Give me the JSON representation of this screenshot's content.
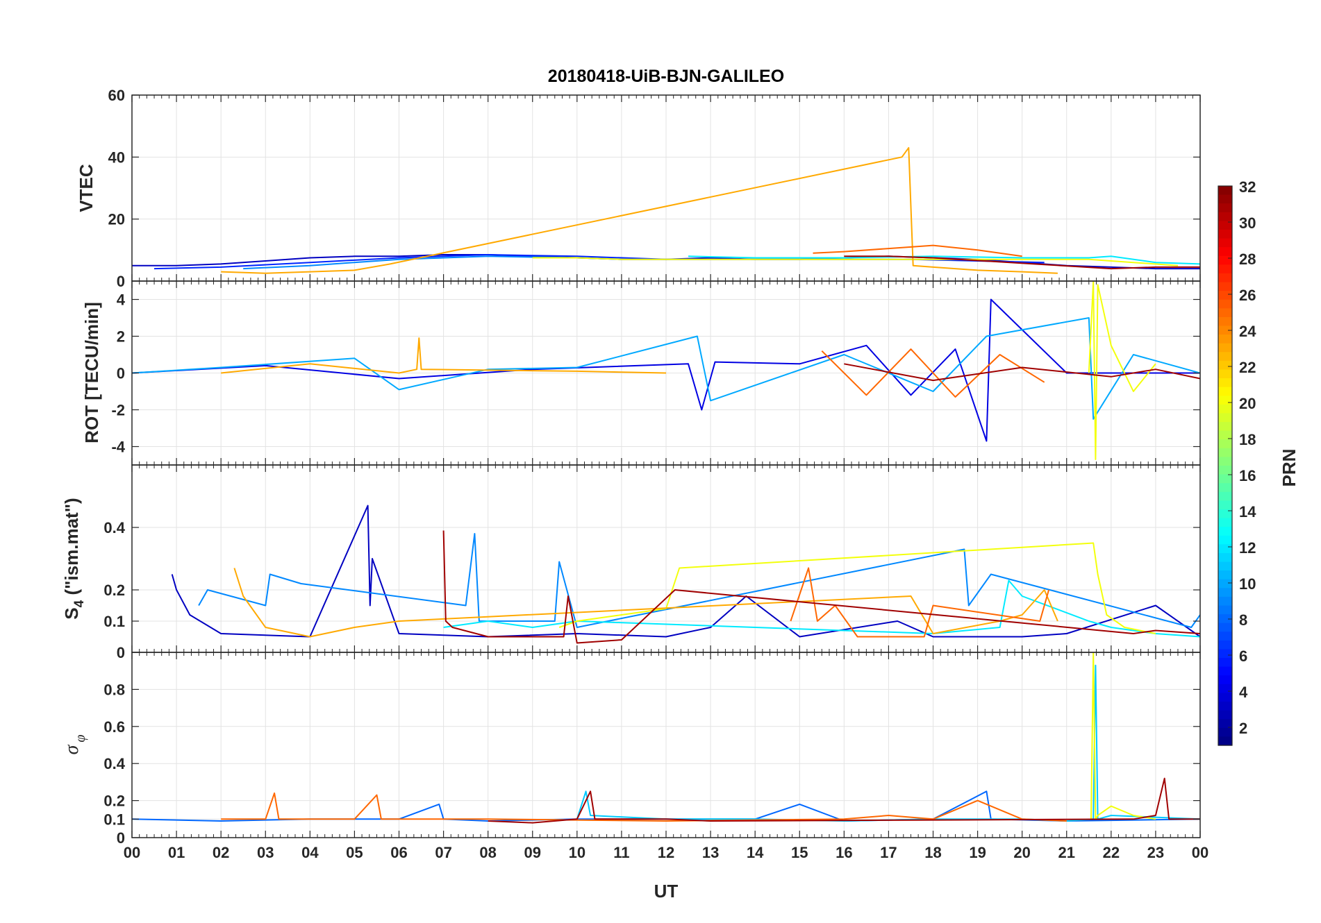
{
  "chart_data": {
    "type": "line",
    "title": "20180418-UiB-BJN-GALILEO",
    "xlabel": "UT",
    "x_ticks": [
      "00",
      "01",
      "02",
      "03",
      "04",
      "05",
      "06",
      "07",
      "08",
      "09",
      "10",
      "11",
      "12",
      "13",
      "14",
      "15",
      "16",
      "17",
      "18",
      "19",
      "20",
      "21",
      "22",
      "23",
      "00"
    ],
    "xlim": [
      0,
      24
    ],
    "grid": true,
    "panels": [
      {
        "ylabel": "VTEC",
        "ylim": [
          0,
          60
        ],
        "yticks": [
          0,
          20,
          40,
          60
        ],
        "series": [
          {
            "prn": 3,
            "x": [
              0,
              1,
              2,
              3,
              4,
              5,
              6,
              7,
              8,
              9,
              10,
              11,
              12,
              13,
              14,
              15,
              16,
              17,
              18,
              19,
              20,
              21,
              22,
              23,
              24
            ],
            "y": [
              5,
              5,
              5.5,
              6.5,
              7.5,
              8,
              8,
              8.5,
              8.5,
              8,
              7.5,
              7,
              7,
              7.5,
              7,
              7,
              7.5,
              8,
              7.5,
              7,
              6,
              5,
              4.5,
              4,
              4
            ]
          },
          {
            "prn": 6,
            "x": [
              0.5,
              2,
              4,
              6,
              8,
              10,
              12,
              14,
              16,
              17.5,
              19,
              20.5
            ],
            "y": [
              4,
              4.5,
              6,
              7.5,
              8.5,
              8,
              7,
              7,
              7,
              7,
              6.5,
              6
            ]
          },
          {
            "prn": 9,
            "x": [
              2.5,
              4,
              6,
              8,
              10,
              11
            ],
            "y": [
              4,
              5,
              7,
              8,
              7.5,
              7
            ]
          },
          {
            "prn": 12,
            "x": [
              12.5,
              14,
              16,
              18,
              20,
              21.5,
              22,
              23,
              24
            ],
            "y": [
              8,
              7.5,
              7.5,
              8,
              7.5,
              7.5,
              8,
              6,
              5.5
            ]
          },
          {
            "prn": 20,
            "x": [
              9,
              10,
              11,
              12,
              21.5,
              22.5,
              23.5
            ],
            "y": [
              7.5,
              7.5,
              7,
              7,
              7,
              6,
              5
            ]
          },
          {
            "prn": 23,
            "x": [
              2,
              3,
              4,
              5,
              5.8,
              17.3,
              17.45,
              17.55,
              18,
              19,
              20,
              20.8
            ],
            "y": [
              3,
              2.5,
              3,
              3.5,
              5.5,
              40,
              43,
              5,
              4.5,
              3.5,
              3,
              2.5
            ]
          },
          {
            "prn": 25,
            "x": [
              15.3,
              16,
              17,
              18,
              19,
              20
            ],
            "y": [
              9,
              9.5,
              10.5,
              11.5,
              10,
              8
            ]
          },
          {
            "prn": 31,
            "x": [
              16,
              17,
              18,
              22,
              23,
              24
            ],
            "y": [
              8,
              8,
              7.5,
              4,
              4.5,
              4.5
            ]
          }
        ]
      },
      {
        "ylabel": "ROT [TECU/min]",
        "ylim": [
          -5,
          5
        ],
        "yticks": [
          -4,
          -2,
          0,
          2,
          4
        ],
        "series": [
          {
            "prn": 4,
            "x": [
              0,
              3,
              6,
              9,
              12.5,
              12.8,
              13.1,
              15,
              16.5,
              17.5,
              18.5,
              19.2,
              19.3,
              21,
              24
            ],
            "y": [
              0,
              0.4,
              -0.3,
              0.2,
              0.5,
              -2,
              0.6,
              0.5,
              1.5,
              -1.2,
              1.3,
              -3.7,
              4,
              0,
              0
            ]
          },
          {
            "prn": 10,
            "x": [
              0,
              2,
              5,
              6,
              8,
              10,
              12.7,
              13,
              16,
              18,
              19.2,
              21.5,
              21.6,
              22.5,
              24
            ],
            "y": [
              0,
              0.3,
              0.8,
              -0.9,
              0.2,
              0.3,
              2,
              -1.5,
              1,
              -1,
              2,
              3,
              -2.5,
              1,
              0
            ]
          },
          {
            "prn": 20,
            "x": [
              21.5,
              21.6,
              21.65,
              21.7,
              22,
              22.5,
              23
            ],
            "y": [
              0,
              5,
              -4.7,
              4.8,
              1.5,
              -1,
              0.5
            ]
          },
          {
            "prn": 23,
            "x": [
              2,
              4,
              6,
              6.4,
              6.45,
              6.5,
              10,
              12
            ],
            "y": [
              0,
              0.5,
              0,
              0.2,
              1.9,
              0.2,
              0.1,
              0
            ]
          },
          {
            "prn": 25,
            "x": [
              15.5,
              16.5,
              17.5,
              18.5,
              19.5,
              20.5
            ],
            "y": [
              1.2,
              -1.2,
              1.3,
              -1.3,
              1,
              -0.5
            ]
          },
          {
            "prn": 31,
            "x": [
              16,
              18,
              20,
              22,
              23,
              24
            ],
            "y": [
              0.5,
              -0.4,
              0.3,
              -0.2,
              0.2,
              -0.3
            ]
          }
        ]
      },
      {
        "ylabel": "S4 (\"ism.mat\")",
        "ylim": [
          0,
          0.6
        ],
        "yticks": [
          0,
          0.1,
          0.2,
          0.4
        ],
        "series": [
          {
            "prn": 3,
            "x": [
              0.9,
              1,
              1.3,
              2,
              4,
              5.3,
              5.35,
              5.4,
              6,
              8,
              10,
              12,
              13,
              13.8,
              15,
              17.2,
              18,
              20,
              21,
              23,
              24
            ],
            "y": [
              0.25,
              0.2,
              0.12,
              0.06,
              0.05,
              0.47,
              0.15,
              0.3,
              0.06,
              0.05,
              0.06,
              0.05,
              0.08,
              0.18,
              0.05,
              0.1,
              0.05,
              0.05,
              0.06,
              0.15,
              0.05
            ]
          },
          {
            "prn": 9,
            "x": [
              1.5,
              1.7,
              3,
              3.1,
              3.8,
              7.5,
              7.7,
              7.8,
              9.5,
              9.6,
              10,
              18.7,
              18.8,
              19.3,
              23.8,
              24
            ],
            "y": [
              0.15,
              0.2,
              0.15,
              0.25,
              0.22,
              0.15,
              0.38,
              0.1,
              0.1,
              0.29,
              0.08,
              0.33,
              0.15,
              0.25,
              0.08,
              0.12
            ]
          },
          {
            "prn": 12,
            "x": [
              7,
              8,
              9,
              10,
              18,
              19.5,
              19.7,
              20,
              21.5,
              22,
              23,
              24
            ],
            "y": [
              0.08,
              0.1,
              0.08,
              0.1,
              0.06,
              0.08,
              0.23,
              0.18,
              0.1,
              0.08,
              0.06,
              0.05
            ]
          },
          {
            "prn": 20,
            "x": [
              9.6,
              10,
              11,
              12,
              12.3,
              21.6,
              21.7,
              21.9,
              22.3,
              23
            ],
            "y": [
              0.08,
              0.1,
              0.12,
              0.14,
              0.27,
              0.35,
              0.25,
              0.12,
              0.08,
              0.06
            ]
          },
          {
            "prn": 23,
            "x": [
              2.3,
              2.5,
              3,
              4,
              5,
              6,
              17.5,
              18,
              19.5,
              20,
              20.5,
              20.8
            ],
            "y": [
              0.27,
              0.18,
              0.08,
              0.05,
              0.08,
              0.1,
              0.18,
              0.06,
              0.1,
              0.12,
              0.2,
              0.1
            ]
          },
          {
            "prn": 25,
            "x": [
              14.8,
              15.2,
              15.4,
              15.8,
              16.3,
              17.8,
              18,
              20.4,
              20.6
            ],
            "y": [
              0.1,
              0.27,
              0.1,
              0.15,
              0.05,
              0.05,
              0.15,
              0.1,
              0.2
            ]
          },
          {
            "prn": 31,
            "x": [
              7,
              7.05,
              7.2,
              8,
              9.7,
              9.8,
              10,
              11,
              12.2,
              22.5,
              23,
              24
            ],
            "y": [
              0.39,
              0.1,
              0.08,
              0.05,
              0.05,
              0.18,
              0.03,
              0.04,
              0.2,
              0.06,
              0.07,
              0.06
            ]
          }
        ]
      },
      {
        "ylabel": "σφ",
        "ylim": [
          0,
          1
        ],
        "yticks": [
          0,
          0.1,
          0.2,
          0.4,
          0.6,
          0.8
        ],
        "series": [
          {
            "prn": 8,
            "x": [
              0,
              2,
              4,
              6,
              6.9,
              7,
              8,
              10,
              12,
              14,
              15,
              16,
              18,
              19.2,
              19.3,
              21,
              24
            ],
            "y": [
              0.1,
              0.09,
              0.1,
              0.1,
              0.18,
              0.1,
              0.09,
              0.1,
              0.1,
              0.1,
              0.18,
              0.09,
              0.1,
              0.25,
              0.1,
              0.09,
              0.1
            ]
          },
          {
            "prn": 11,
            "x": [
              10,
              10.2,
              10.3,
              12,
              14,
              16,
              18,
              20,
              21,
              21.6,
              21.65,
              21.7,
              22,
              24
            ],
            "y": [
              0.1,
              0.25,
              0.12,
              0.1,
              0.1,
              0.09,
              0.1,
              0.1,
              0.09,
              0.1,
              0.93,
              0.1,
              0.12,
              0.1
            ]
          },
          {
            "prn": 20,
            "x": [
              21.55,
              21.6,
              21.65,
              21.7,
              22,
              22.5,
              23
            ],
            "y": [
              0.1,
              1,
              0.1,
              0.12,
              0.17,
              0.12,
              0.1
            ]
          },
          {
            "prn": 25,
            "x": [
              2,
              3,
              3.2,
              3.3,
              5,
              5.5,
              5.6,
              8,
              12,
              16,
              17,
              18,
              19,
              20,
              21
            ],
            "y": [
              0.1,
              0.1,
              0.24,
              0.1,
              0.1,
              0.23,
              0.1,
              0.1,
              0.09,
              0.1,
              0.12,
              0.1,
              0.2,
              0.1,
              0.09
            ]
          },
          {
            "prn": 31,
            "x": [
              8,
              9,
              10,
              10.3,
              10.4,
              12,
              13,
              22.5,
              23,
              23.2,
              23.3,
              24
            ],
            "y": [
              0.09,
              0.08,
              0.1,
              0.25,
              0.1,
              0.1,
              0.09,
              0.1,
              0.12,
              0.32,
              0.1,
              0.1
            ]
          }
        ]
      }
    ],
    "colorbar": {
      "label": "PRN",
      "range": [
        1,
        32
      ],
      "ticks": [
        2,
        4,
        6,
        8,
        10,
        12,
        14,
        16,
        18,
        20,
        22,
        24,
        26,
        28,
        30,
        32
      ],
      "colormap": "jet",
      "placement": "right"
    }
  }
}
